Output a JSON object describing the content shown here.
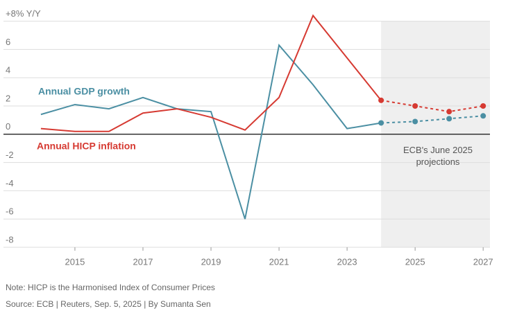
{
  "chart_data": {
    "type": "line",
    "x": [
      2014,
      2015,
      2016,
      2017,
      2018,
      2019,
      2020,
      2021,
      2022,
      2023,
      2024,
      2025,
      2026,
      2027
    ],
    "series": [
      {
        "name": "Annual GDP growth",
        "color": "#4b8fa3",
        "values": [
          1.4,
          2.1,
          1.8,
          2.6,
          1.8,
          1.6,
          -6.0,
          6.3,
          3.5,
          0.4,
          0.8,
          0.9,
          1.1,
          1.3
        ]
      },
      {
        "name": "Annual HICP inflation",
        "color": "#d63a32",
        "values": [
          0.4,
          0.2,
          0.2,
          1.5,
          1.8,
          1.2,
          0.3,
          2.6,
          8.4,
          5.4,
          2.4,
          2.0,
          1.6,
          2.0
        ]
      }
    ],
    "projection_from": 2024,
    "annotation": "ECB's June 2025 projections",
    "xlim": [
      2012.9,
      2027.2
    ],
    "xticks": [
      2015,
      2017,
      2019,
      2021,
      2023,
      2025,
      2027
    ],
    "ylim": [
      -8,
      8.5
    ],
    "yticks": [
      {
        "value": 8,
        "label": "+8% Y/Y"
      },
      6,
      4,
      2,
      0,
      -2,
      -4,
      -6,
      -8
    ],
    "grid": true,
    "note": "Note: HICP is the Harmonised Index of Consumer Prices",
    "source": "Source: ECB | Reuters, Sep. 5, 2025 | By Sumanta Sen"
  }
}
